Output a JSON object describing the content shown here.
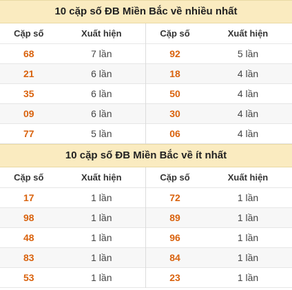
{
  "most": {
    "title": "10 cặp số ĐB Miền Bắc về nhiều nhất",
    "col_pair": "Cặp số",
    "col_count": "Xuất hiện",
    "left": [
      {
        "pair": "68",
        "count": "7 lần"
      },
      {
        "pair": "21",
        "count": "6 lần"
      },
      {
        "pair": "35",
        "count": "6 lần"
      },
      {
        "pair": "09",
        "count": "6 lần"
      },
      {
        "pair": "77",
        "count": "5 lần"
      }
    ],
    "right": [
      {
        "pair": "92",
        "count": "5 lần"
      },
      {
        "pair": "18",
        "count": "4 lần"
      },
      {
        "pair": "50",
        "count": "4 lần"
      },
      {
        "pair": "30",
        "count": "4 lần"
      },
      {
        "pair": "06",
        "count": "4 lần"
      }
    ]
  },
  "least": {
    "title": "10 cặp số ĐB Miền Bắc về ít nhất",
    "col_pair": "Cặp số",
    "col_count": "Xuất hiện",
    "left": [
      {
        "pair": "17",
        "count": "1 lần"
      },
      {
        "pair": "98",
        "count": "1 lần"
      },
      {
        "pair": "48",
        "count": "1 lần"
      },
      {
        "pair": "83",
        "count": "1 lần"
      },
      {
        "pair": "53",
        "count": "1 lần"
      }
    ],
    "right": [
      {
        "pair": "72",
        "count": "1 lần"
      },
      {
        "pair": "89",
        "count": "1 lần"
      },
      {
        "pair": "96",
        "count": "1 lần"
      },
      {
        "pair": "84",
        "count": "1 lần"
      },
      {
        "pair": "23",
        "count": "1 lần"
      }
    ]
  },
  "colors": {
    "title_bg": "#faebc0",
    "pair_text": "#d9620d",
    "alt_row": "#f7f7f7"
  }
}
